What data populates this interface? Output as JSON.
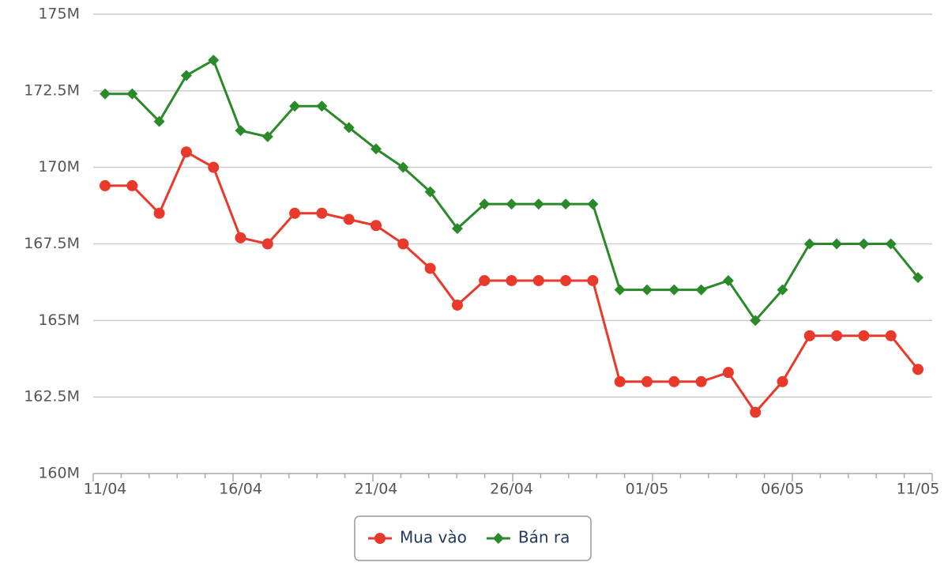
{
  "chart_data": {
    "type": "line",
    "categories": [
      "11/04",
      null,
      null,
      null,
      null,
      "16/04",
      null,
      null,
      null,
      null,
      "21/04",
      null,
      null,
      null,
      null,
      "26/04",
      null,
      null,
      null,
      null,
      "01/05",
      null,
      null,
      null,
      null,
      "06/05",
      null,
      null,
      null,
      null,
      "11/05"
    ],
    "series": [
      {
        "name": "Mua vào",
        "color": "#e8392b",
        "marker": "circle",
        "values": [
          169.4,
          169.4,
          168.5,
          170.5,
          170.0,
          167.7,
          167.5,
          168.5,
          168.5,
          168.3,
          168.1,
          167.5,
          166.7,
          165.5,
          166.3,
          166.3,
          166.3,
          166.3,
          166.3,
          163.0,
          163.0,
          163.0,
          163.0,
          163.3,
          162.0,
          163.0,
          164.5,
          164.5,
          164.5,
          164.5,
          163.4
        ]
      },
      {
        "name": "Bán ra",
        "color": "#2a8a2a",
        "marker": "diamond",
        "values": [
          172.4,
          172.4,
          171.5,
          173.0,
          173.5,
          171.2,
          171.0,
          172.0,
          172.0,
          171.3,
          170.6,
          170.0,
          169.2,
          168.0,
          168.8,
          168.8,
          168.8,
          168.8,
          168.8,
          166.0,
          166.0,
          166.0,
          166.0,
          166.3,
          165.0,
          166.0,
          167.5,
          167.5,
          167.5,
          167.5,
          166.4
        ]
      }
    ],
    "ylim": [
      160,
      175
    ],
    "yticks": [
      {
        "value": 160,
        "label": "160M"
      },
      {
        "value": 162.5,
        "label": "162.5M"
      },
      {
        "value": 165,
        "label": "165M"
      },
      {
        "value": 167.5,
        "label": "167.5M"
      },
      {
        "value": 170,
        "label": "170M"
      },
      {
        "value": 172.5,
        "label": "172.5M"
      },
      {
        "value": 175,
        "label": "175M"
      }
    ],
    "grid": true,
    "legend": "bottom"
  }
}
